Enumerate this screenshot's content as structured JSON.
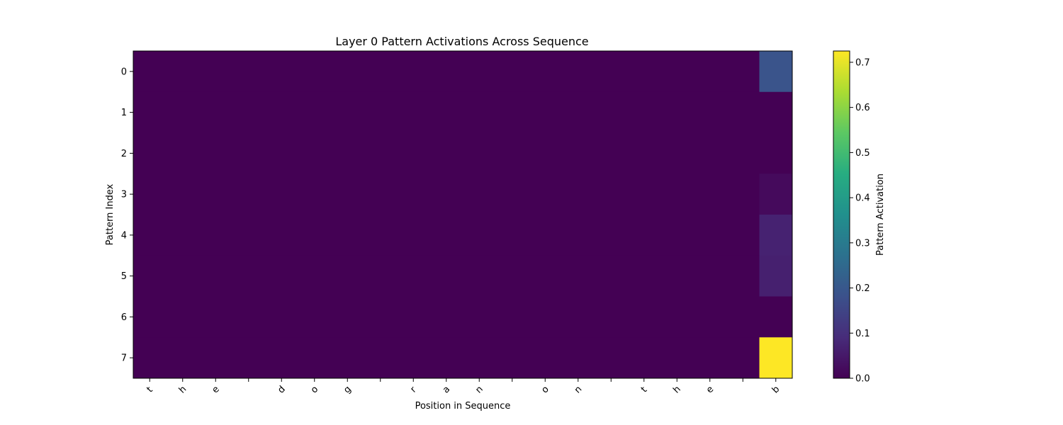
{
  "chart_data": {
    "type": "heatmap",
    "title": "Layer 0 Pattern Activations Across Sequence",
    "xlabel": "Position in Sequence",
    "ylabel": "Pattern Index",
    "x_tick_labels": [
      "t",
      "h",
      "e",
      " ",
      "d",
      "o",
      "g",
      " ",
      "r",
      "a",
      "n",
      " ",
      "o",
      "n",
      " ",
      "t",
      "h",
      "e",
      " ",
      "b"
    ],
    "y_tick_labels": [
      "0",
      "1",
      "2",
      "3",
      "4",
      "5",
      "6",
      "7"
    ],
    "values": [
      [
        0,
        0,
        0,
        0,
        0,
        0,
        0,
        0,
        0,
        0,
        0,
        0,
        0,
        0,
        0,
        0,
        0,
        0,
        0,
        0.19
      ],
      [
        0,
        0,
        0,
        0,
        0,
        0,
        0,
        0,
        0,
        0,
        0,
        0,
        0,
        0,
        0,
        0,
        0,
        0,
        0,
        0.0
      ],
      [
        0,
        0,
        0,
        0,
        0,
        0,
        0,
        0,
        0,
        0,
        0,
        0,
        0,
        0,
        0,
        0,
        0,
        0,
        0,
        0.0
      ],
      [
        0,
        0,
        0,
        0,
        0,
        0,
        0,
        0,
        0,
        0,
        0,
        0,
        0,
        0,
        0,
        0,
        0,
        0,
        0,
        0.02
      ],
      [
        0,
        0,
        0,
        0,
        0,
        0,
        0,
        0,
        0,
        0,
        0,
        0,
        0,
        0,
        0,
        0,
        0,
        0,
        0,
        0.07
      ],
      [
        0,
        0,
        0,
        0,
        0,
        0,
        0,
        0,
        0,
        0,
        0,
        0,
        0,
        0,
        0,
        0,
        0,
        0,
        0,
        0.065
      ],
      [
        0,
        0,
        0,
        0,
        0,
        0,
        0,
        0,
        0,
        0,
        0,
        0,
        0,
        0,
        0,
        0,
        0,
        0,
        0,
        0.0
      ],
      [
        0,
        0,
        0,
        0,
        0,
        0,
        0,
        0,
        0,
        0,
        0,
        0,
        0,
        0,
        0,
        0,
        0,
        0,
        0,
        0.725
      ]
    ],
    "colorbar": {
      "label": "Pattern Activation",
      "min": 0,
      "max": 0.725,
      "ticks": [
        "0.0",
        "0.1",
        "0.2",
        "0.3",
        "0.4",
        "0.5",
        "0.6",
        "0.7"
      ],
      "colormap": "viridis"
    },
    "grid": false
  }
}
